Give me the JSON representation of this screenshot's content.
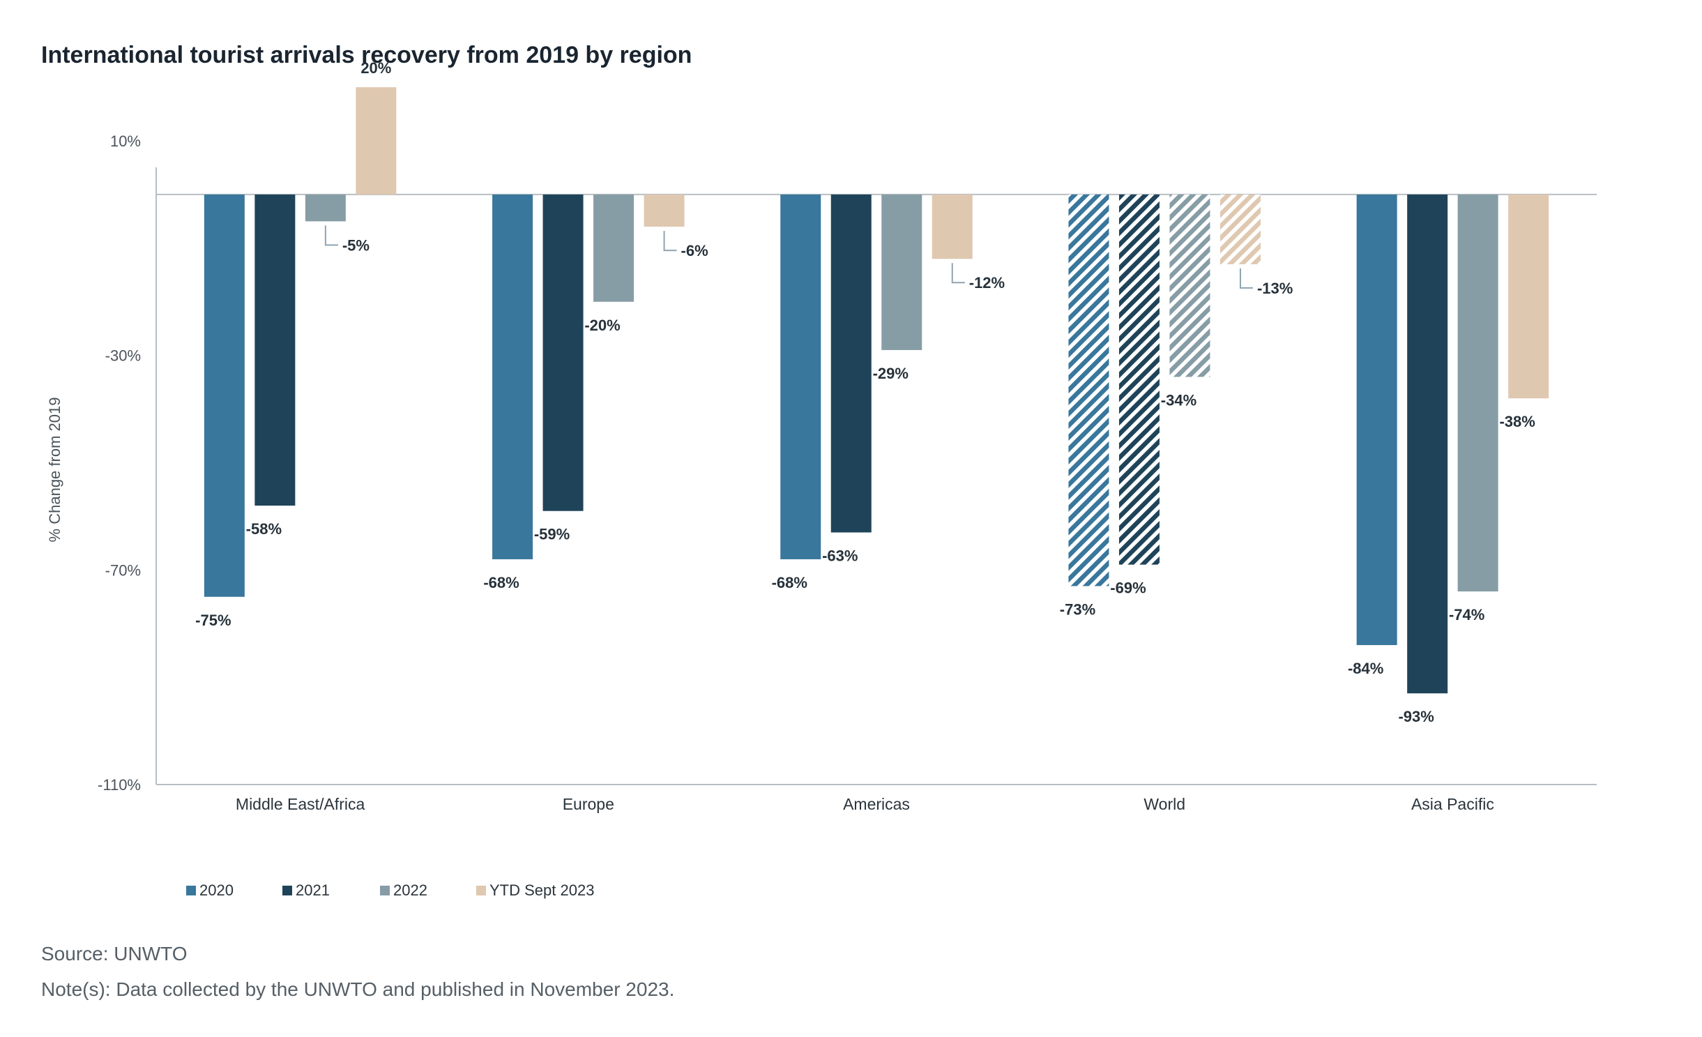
{
  "footer": {
    "source": "Source: UNWTO",
    "note": "Note(s): Data collected by the UNWTO and published in November 2023."
  },
  "chart_data": {
    "type": "bar",
    "title": "International tourist arrivals recovery from 2019 by region",
    "xlabel": "",
    "ylabel": "% Change from 2019",
    "ylim": [
      -110,
      10
    ],
    "yticks": [
      10,
      -30,
      -70,
      -110
    ],
    "ytick_labels": [
      "10%",
      "-30%",
      "-70%",
      "-110%"
    ],
    "grid": false,
    "legend_position": "bottom-left",
    "categories": [
      "Middle East/Africa",
      "Europe",
      "Americas",
      "World",
      "Asia Pacific"
    ],
    "hatched_categories": [
      "World"
    ],
    "series": [
      {
        "name": "2020",
        "color": "#39779c",
        "values": [
          -75,
          -68,
          -68,
          -73,
          -84
        ],
        "labels": [
          "-75%",
          "-68%",
          "-68%",
          "-73%",
          "-84%"
        ]
      },
      {
        "name": "2021",
        "color": "#1f4459",
        "values": [
          -58,
          -59,
          -63,
          -69,
          -93
        ],
        "labels": [
          "-58%",
          "-59%",
          "-63%",
          "-69%",
          "-93%"
        ]
      },
      {
        "name": "2022",
        "color": "#879da6",
        "values": [
          -5,
          -20,
          -29,
          -34,
          -74
        ],
        "labels": [
          "-5%",
          "-20%",
          "-29%",
          "-34%",
          "-74%"
        ]
      },
      {
        "name": "YTD Sept 2023",
        "color": "#dfc8b0",
        "values": [
          20,
          -6,
          -12,
          -13,
          -38
        ],
        "labels": [
          "20%",
          "-6%",
          "-12%",
          "-13%",
          "-38%"
        ]
      }
    ]
  }
}
